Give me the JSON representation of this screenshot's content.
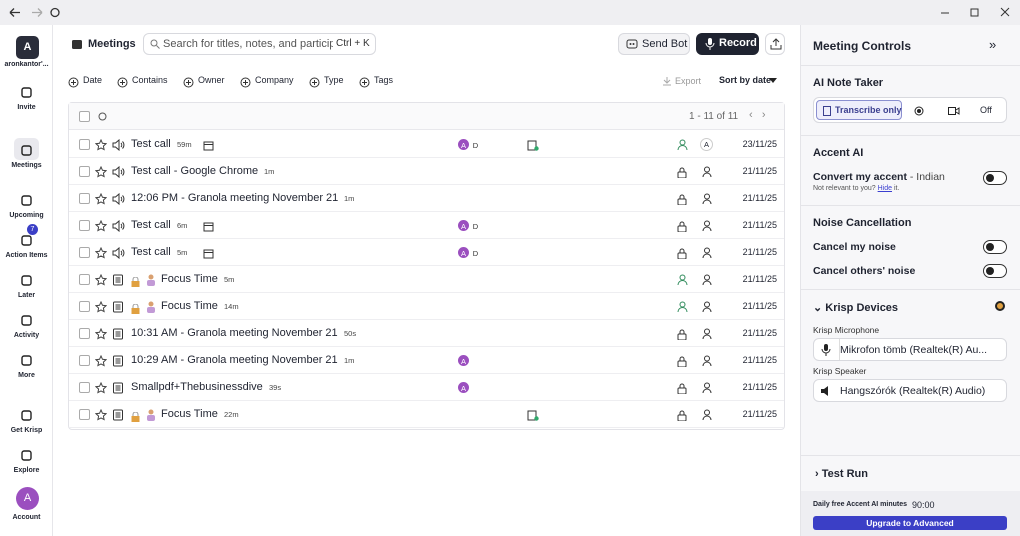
{
  "sidebar": {
    "avatar": "A",
    "user": "aronkantor'...",
    "nav": [
      {
        "label": "Invite"
      },
      {
        "label": "Meetings"
      },
      {
        "label": "Upcoming"
      },
      {
        "label": "Action Items",
        "badge": 7
      },
      {
        "label": "Later"
      },
      {
        "label": "Activity"
      },
      {
        "label": "More"
      }
    ],
    "footer": [
      {
        "label": "Get Krisp"
      },
      {
        "label": "Explore"
      },
      {
        "label": "Account",
        "avatar": "A"
      }
    ]
  },
  "header": {
    "title": "Meetings",
    "search_placeholder": "Search for titles, notes, and participan",
    "shortcut": "Ctrl + K",
    "send_bot": "Send Bot",
    "record": "Record"
  },
  "filters": [
    "Date",
    "Contains",
    "Owner",
    "Company",
    "Type",
    "Tags"
  ],
  "toolbar": {
    "export": "Export",
    "sort": "Sort by date"
  },
  "table": {
    "pagination": "1 - 11 of 11",
    "rows": [
      {
        "title": "Test call",
        "duration": "59m",
        "participants": [
          "A",
          "D"
        ],
        "owner": "A",
        "date": "23/11/25"
      },
      {
        "title": "Test call - Google Chrome",
        "duration": "1m",
        "participants": [],
        "date": "21/11/25"
      },
      {
        "title": "12:06 PM - Granola meeting November 21",
        "duration": "1m",
        "participants": [],
        "date": "21/11/25"
      },
      {
        "title": "Test call",
        "duration": "6m",
        "participants": [
          "A",
          "D"
        ],
        "date": "21/11/25"
      },
      {
        "title": "Test call",
        "duration": "5m",
        "participants": [
          "A",
          "D"
        ],
        "date": "21/11/25"
      },
      {
        "title": "Focus Time",
        "duration": "5m",
        "participants": [],
        "date": "21/11/25"
      },
      {
        "title": "Focus Time",
        "duration": "14m",
        "participants": [],
        "date": "21/11/25"
      },
      {
        "title": "10:31 AM - Granola meeting November 21",
        "duration": "50s",
        "participants": [],
        "date": "21/11/25"
      },
      {
        "title": "10:29 AM - Granola meeting November 21",
        "duration": "1m",
        "participants": [
          "A"
        ],
        "date": "21/11/25"
      },
      {
        "title": "Smallpdf+Thebusinessdive",
        "duration": "39s",
        "participants": [
          "A"
        ],
        "date": "21/11/25"
      },
      {
        "title": "Focus Time",
        "duration": "22m",
        "participants": [],
        "date": "21/11/25"
      }
    ]
  },
  "panel": {
    "title": "Meeting Controls",
    "note_taker": {
      "title": "AI Note Taker",
      "options": [
        "Transcribe only",
        "Off"
      ]
    },
    "accent": {
      "title": "Accent AI",
      "setting": "Convert my accent",
      "accent_value": "- Indian",
      "hint": "Not relevant to you?",
      "hide": "Hide",
      "hint_end": "it."
    },
    "noise": {
      "title": "Noise Cancellation",
      "my_noise": "Cancel my noise",
      "others_noise": "Cancel others' noise"
    },
    "devices": {
      "title": "Krisp Devices",
      "mic_label": "Krisp Microphone",
      "mic": "Mikrofon tömb (Realtek(R) Au...",
      "speaker_label": "Krisp Speaker",
      "speaker": "Hangszórók (Realtek(R) Audio)"
    },
    "test_run": "Test Run",
    "minutes_label": "Daily free Accent AI minutes",
    "minutes": "90:00",
    "upgrade": "Upgrade to Advanced"
  }
}
